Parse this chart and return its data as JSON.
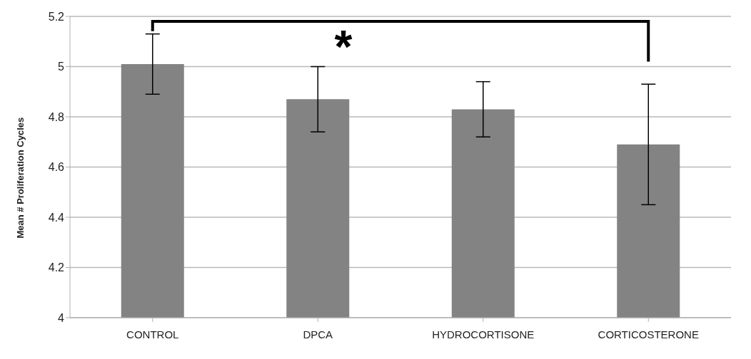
{
  "chart_data": {
    "type": "bar",
    "ylabel": "Mean # Proliferation Cycles",
    "categories": [
      "CONTROL",
      "DPCA",
      "HYDROCORTISONE",
      "CORTICOSTERONE"
    ],
    "values": [
      5.01,
      4.87,
      4.83,
      4.69
    ],
    "errors": [
      0.12,
      0.13,
      0.11,
      0.24
    ],
    "color": "#838383",
    "ylim": [
      4,
      5.2
    ],
    "yticks": [
      4,
      4.2,
      4.4,
      4.6,
      4.8,
      5,
      5.2
    ],
    "grid": "y",
    "annotations": [
      "*"
    ]
  }
}
